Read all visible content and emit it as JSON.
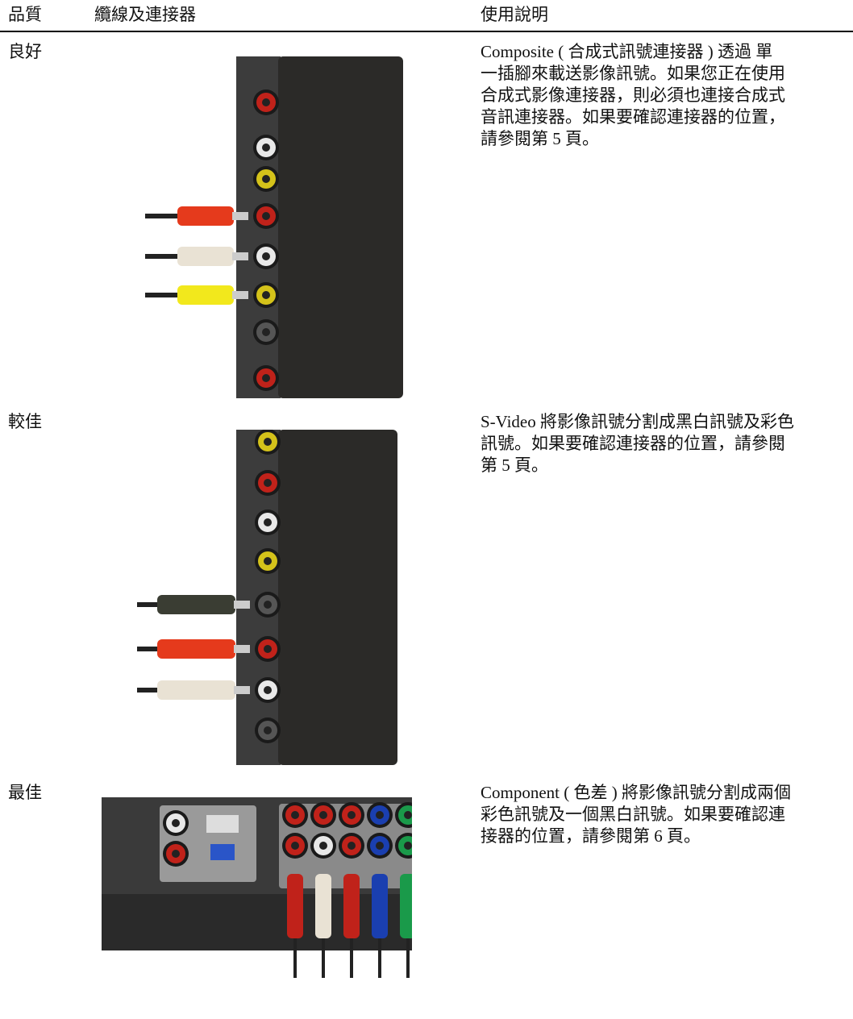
{
  "header": {
    "quality": "品質",
    "cable": "纜線及連接器",
    "description": "使用說明"
  },
  "rows": [
    {
      "quality": "良好",
      "description": [
        "Composite ( 合成式訊號連接器 ) 透過 單",
        "一插腳來載送影像訊號。如果您正在使用",
        "合成式影像連接器，則必須也連接合成式",
        "音訊連接器。如果要確認連接器的位置，",
        "請參閱第 5 頁。"
      ]
    },
    {
      "quality": "較佳",
      "description": [
        "S-Video 將影像訊號分割成黑白訊號及彩色",
        "訊號。如果要確認連接器的位置，請參閱",
        "第 5 頁。"
      ]
    },
    {
      "quality": "最佳",
      "description": [
        "Component ( 色差 ) 將影像訊號分割成兩個",
        "彩色訊號及一個黑白訊號。如果要確認連",
        "接器的位置，請參閱第 6 頁。"
      ]
    }
  ]
}
